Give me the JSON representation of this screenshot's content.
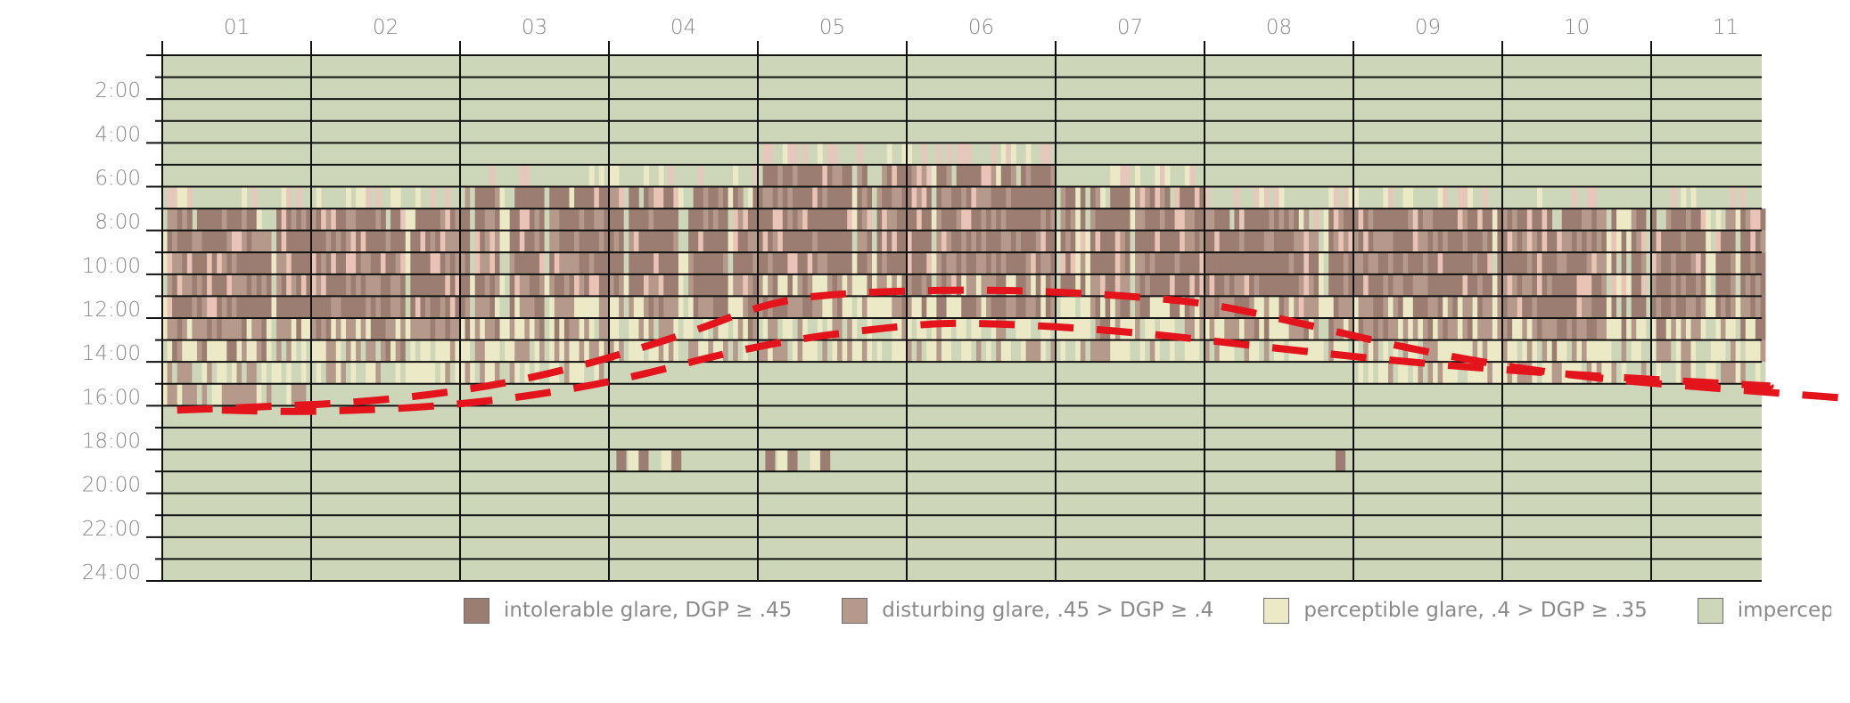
{
  "chart_data": {
    "type": "heatmap",
    "x_categories": [
      "01",
      "02",
      "03",
      "04",
      "05",
      "06",
      "07",
      "08",
      "09",
      "10",
      "11"
    ],
    "y_ticks": [
      "2:00",
      "4:00",
      "6:00",
      "8:00",
      "10:00",
      "12:00",
      "14:00",
      "16:00",
      "18:00",
      "20:00",
      "22:00",
      "24:00"
    ],
    "y_range_hours": [
      0,
      24
    ],
    "grid": true,
    "legend_position": "bottom",
    "legend": [
      {
        "label": "intolerable glare, DGP ≥ .45",
        "color": "#9c7d72"
      },
      {
        "label": "disturbing glare, .45 > DGP ≥ .4",
        "color": "#b59a8c"
      },
      {
        "label": "perceptible glare, .4 > DGP ≥ .35",
        "color": "#ece9c6"
      },
      {
        "label": "impercepti",
        "color": "#cdd6b9"
      }
    ],
    "glare_start_hour": [
      8,
      7,
      7,
      6,
      6,
      5,
      6,
      7,
      7,
      7,
      7
    ],
    "glare_end_hour": [
      16,
      15,
      15,
      14,
      14,
      14,
      14,
      14,
      14,
      15,
      15
    ],
    "evening_glare": [
      {
        "month": "04",
        "hour_from": 18,
        "hour_to": 19
      },
      {
        "month": "05",
        "hour_from": 18,
        "hour_to": 19
      },
      {
        "month": "08",
        "hour_from": 18,
        "hour_to": 19
      }
    ],
    "overlay_curves": [
      {
        "style": "red dashed",
        "points": [
          [
            0.6,
            16.2
          ],
          [
            1.0,
            16.1
          ],
          [
            2.0,
            15.8
          ],
          [
            3.0,
            14.8
          ],
          [
            4.0,
            12.8
          ],
          [
            4.6,
            11.2
          ],
          [
            5.2,
            10.8
          ],
          [
            6.0,
            10.7
          ],
          [
            6.5,
            10.8
          ],
          [
            7.0,
            11.0
          ],
          [
            7.5,
            11.3
          ],
          [
            8.0,
            12.0
          ],
          [
            9.0,
            13.6
          ],
          [
            10.0,
            14.7
          ],
          [
            11.3,
            15.4
          ],
          [
            11.9,
            15.7
          ]
        ]
      },
      {
        "style": "red dashed",
        "points": [
          [
            0.9,
            16.2
          ],
          [
            1.5,
            16.3
          ],
          [
            2.5,
            16.0
          ],
          [
            3.5,
            15.0
          ],
          [
            4.5,
            13.2
          ],
          [
            5.5,
            12.3
          ],
          [
            6.0,
            12.2
          ],
          [
            7.0,
            12.6
          ],
          [
            8.0,
            13.4
          ],
          [
            9.0,
            14.1
          ],
          [
            10.0,
            14.6
          ],
          [
            11.3,
            15.1
          ]
        ]
      }
    ]
  }
}
